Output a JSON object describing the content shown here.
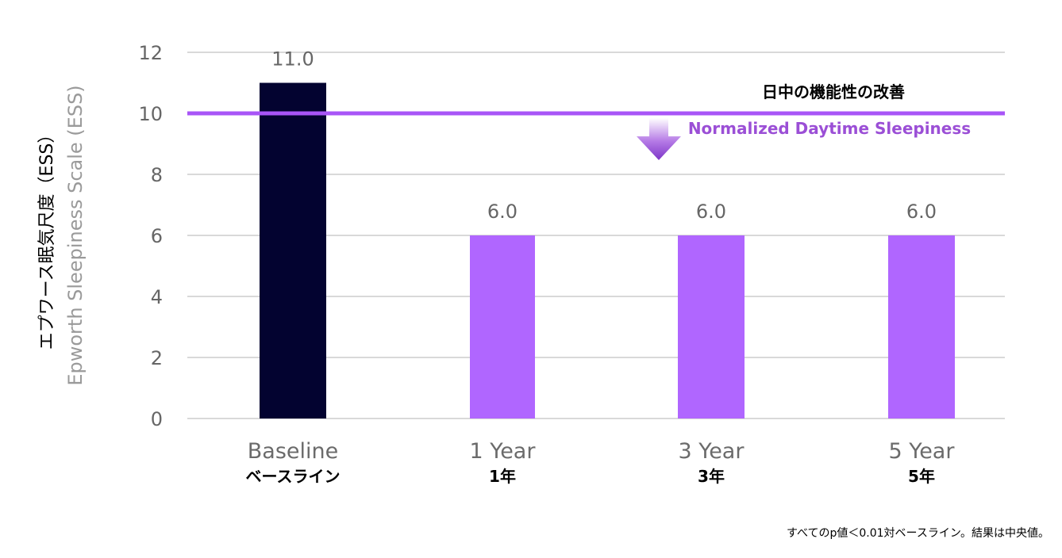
{
  "chart_data": {
    "type": "bar",
    "categories": [
      "Baseline",
      "1 Year",
      "3 Year",
      "5 Year"
    ],
    "categories_ja": [
      "ベースライン",
      "1年",
      "3年",
      "5年"
    ],
    "values": [
      11.0,
      6.0,
      6.0,
      6.0
    ],
    "data_labels": [
      "11.0",
      "6.0",
      "6.0",
      "6.0"
    ],
    "bar_colors": [
      "#030330",
      "#b066ff",
      "#b066ff",
      "#b066ff"
    ],
    "ylabel_ja": "エプワース眠気尺度（ESS）",
    "ylabel_en": "Epworth Sleepiness Scale (ESS)",
    "ylim": [
      0,
      12
    ],
    "yticks": [
      0,
      2,
      4,
      6,
      8,
      10,
      12
    ],
    "grid": true,
    "reference_line": {
      "value": 10,
      "color": "#a855f7",
      "label_ja": "日中の機能性の改善",
      "label_en": "Normalized Daytime Sleepiness",
      "arrow": "down"
    },
    "footnote": "すべてのp値＜0.01対ベースライン。結果は中央値。"
  }
}
